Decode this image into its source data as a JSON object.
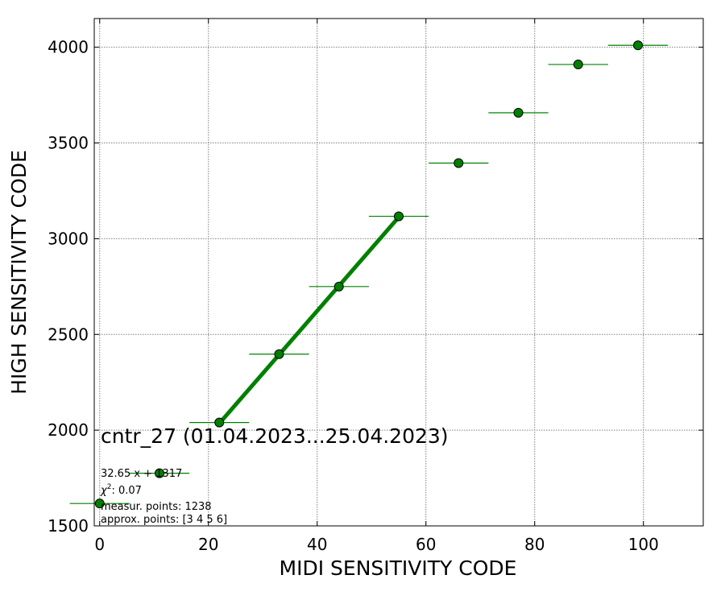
{
  "chart_data": {
    "type": "scatter",
    "xlabel": "MIDI SENSITIVITY CODE",
    "ylabel": "HIGH SENSITIVITY CODE",
    "xlim": [
      -1,
      111
    ],
    "ylim": [
      1500,
      4150
    ],
    "x_ticks": [
      0,
      20,
      40,
      60,
      80,
      100
    ],
    "y_ticks": [
      1500,
      2000,
      2500,
      3000,
      3500,
      4000
    ],
    "grid": true,
    "points": [
      {
        "x": 0,
        "y": 1617,
        "xerr": 5.5,
        "yerr": 15
      },
      {
        "x": 11,
        "y": 1775,
        "xerr": 5.5,
        "yerr": 15
      },
      {
        "x": 22,
        "y": 2040,
        "xerr": 5.5,
        "yerr": 15
      },
      {
        "x": 33,
        "y": 2397,
        "xerr": 5.5,
        "yerr": 15
      },
      {
        "x": 44,
        "y": 2750,
        "xerr": 5.5,
        "yerr": 15
      },
      {
        "x": 55,
        "y": 3117,
        "xerr": 5.5,
        "yerr": 25
      },
      {
        "x": 66,
        "y": 3395,
        "xerr": 5.5,
        "yerr": 25
      },
      {
        "x": 77,
        "y": 3658,
        "xerr": 5.5,
        "yerr": 25
      },
      {
        "x": 88,
        "y": 3910,
        "xerr": 5.5,
        "yerr": 15
      },
      {
        "x": 99,
        "y": 4010,
        "xerr": 5.5,
        "yerr": 10
      }
    ],
    "fit_line": {
      "slope": 32.65,
      "intercept": 1317,
      "x_range": [
        22,
        55
      ]
    },
    "colors": {
      "marker": "#008000",
      "marker_edge": "#000000",
      "fit_line": "#008000",
      "grid": "#808080"
    },
    "annotations": {
      "title": "cntr_27 (01.04.2023...25.04.2023)",
      "equation": "32.65 x + 1317",
      "chi2_symbol": "χ",
      "chi2_power": "2",
      "chi2_value": ": 0.07",
      "measur_points": "measur. points: 1238",
      "approx_points": "approx. points: [3 4 5 6]"
    }
  }
}
